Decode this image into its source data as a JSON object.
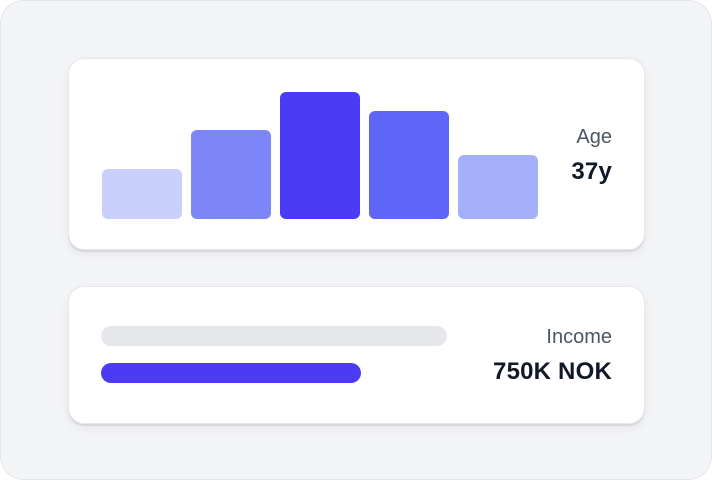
{
  "age_card": {
    "label": "Age",
    "value": "37y",
    "histogram": {
      "relative_heights": [
        0.39,
        0.7,
        1.0,
        0.85,
        0.5
      ],
      "colors": [
        "#c9d0fb",
        "#7d86f8",
        "#4c3bf5",
        "#6065f9",
        "#a5affb"
      ]
    }
  },
  "income_card": {
    "label": "Income",
    "value": "750K NOK",
    "bar_fill_fraction": 0.75,
    "colors": {
      "track": "#e5e7eb",
      "fill": "#4c3bf5"
    }
  }
}
